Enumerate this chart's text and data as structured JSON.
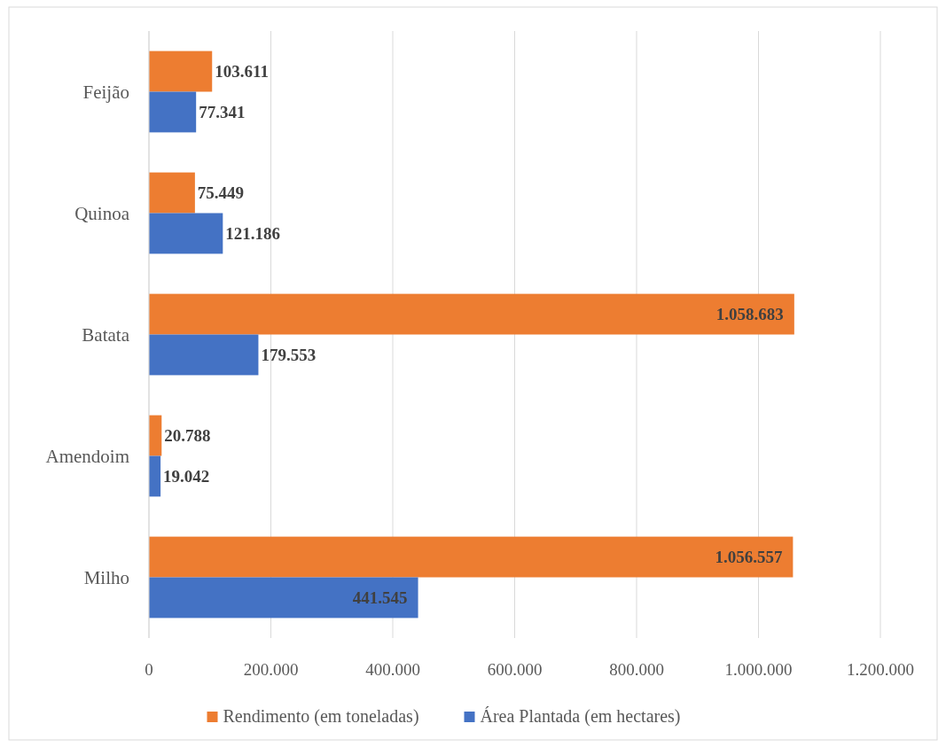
{
  "chart_data": {
    "type": "bar",
    "orientation": "horizontal",
    "categories": [
      "Feijão",
      "Quinoa",
      "Batata",
      "Amendoim",
      "Milho"
    ],
    "series": [
      {
        "name": "Rendimento (em toneladas)",
        "color": "#ed7d31",
        "values": [
          103611,
          75449,
          1058683,
          20788,
          1056557
        ],
        "value_labels": [
          "103.611",
          "75.449",
          "1.058.683",
          "20.788",
          "1.056.557"
        ]
      },
      {
        "name": "Área Plantada (em hectares)",
        "color": "#4472c4",
        "values": [
          77341,
          121186,
          179553,
          19042,
          441545
        ],
        "value_labels": [
          "77.341",
          "121.186",
          "179.553",
          "19.042",
          "441.545"
        ]
      }
    ],
    "xlim": [
      0,
      1200000
    ],
    "xticks": [
      0,
      {
        "value": 200000,
        "label": "200.000"
      },
      {
        "value": 400000,
        "label": "400.000"
      },
      {
        "value": 600000,
        "label": "600.000"
      },
      {
        "value": 800000,
        "label": "800.000"
      },
      {
        "value": 1000000,
        "label": "1.000.000"
      },
      {
        "value": 1200000,
        "label": "1.200.000"
      }
    ],
    "grid": "x",
    "legend": "bottom"
  }
}
